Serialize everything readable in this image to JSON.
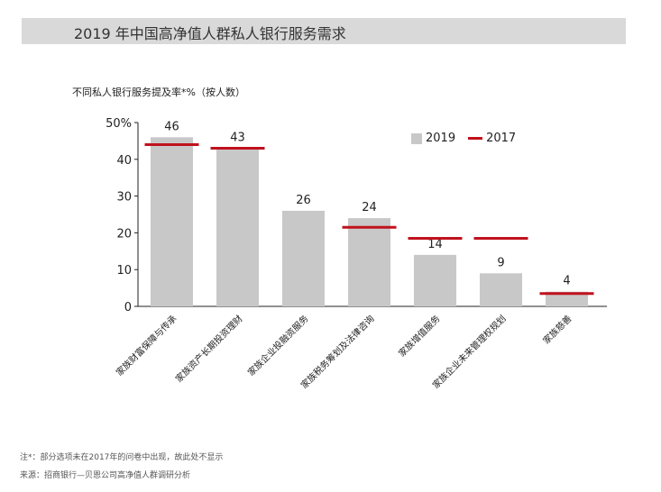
{
  "header": {
    "title": "2019 年中国高净值人群私人银行服务需求"
  },
  "chart_data": {
    "type": "bar",
    "subtitle": "不同私人银行服务提及率*%（按人数）",
    "categories": [
      "家族财富保障与传承",
      "家族资产长期投资理财",
      "家族企业投融资服务",
      "家族税务筹划及法律咨询",
      "家族增值服务",
      "家族企业未来管理权规划",
      "家族慈善"
    ],
    "series": [
      {
        "name": "2019",
        "type": "bar",
        "values": [
          46,
          43,
          26,
          24,
          14,
          9,
          4
        ],
        "color": "#c8c8c8"
      },
      {
        "name": "2017",
        "type": "marker",
        "values": [
          44,
          43,
          null,
          21.5,
          18.5,
          18.5,
          3.5
        ],
        "color": "#c0121d"
      }
    ],
    "data_labels": [
      "46",
      "43",
      "26",
      "24",
      "14",
      "9",
      "4"
    ],
    "yticks": [
      "0",
      "10",
      "20",
      "30",
      "40",
      "50%"
    ],
    "ytick_values": [
      0,
      10,
      20,
      30,
      40,
      50
    ],
    "ylim": [
      0,
      50
    ],
    "legend": {
      "position": "top-right",
      "labels": [
        "2019",
        "2017"
      ]
    }
  },
  "notes": {
    "note": "注*：部分选项未在2017年的问卷中出现，故此处不显示",
    "source": "来源：招商银行—贝恩公司高净值人群调研分析"
  }
}
